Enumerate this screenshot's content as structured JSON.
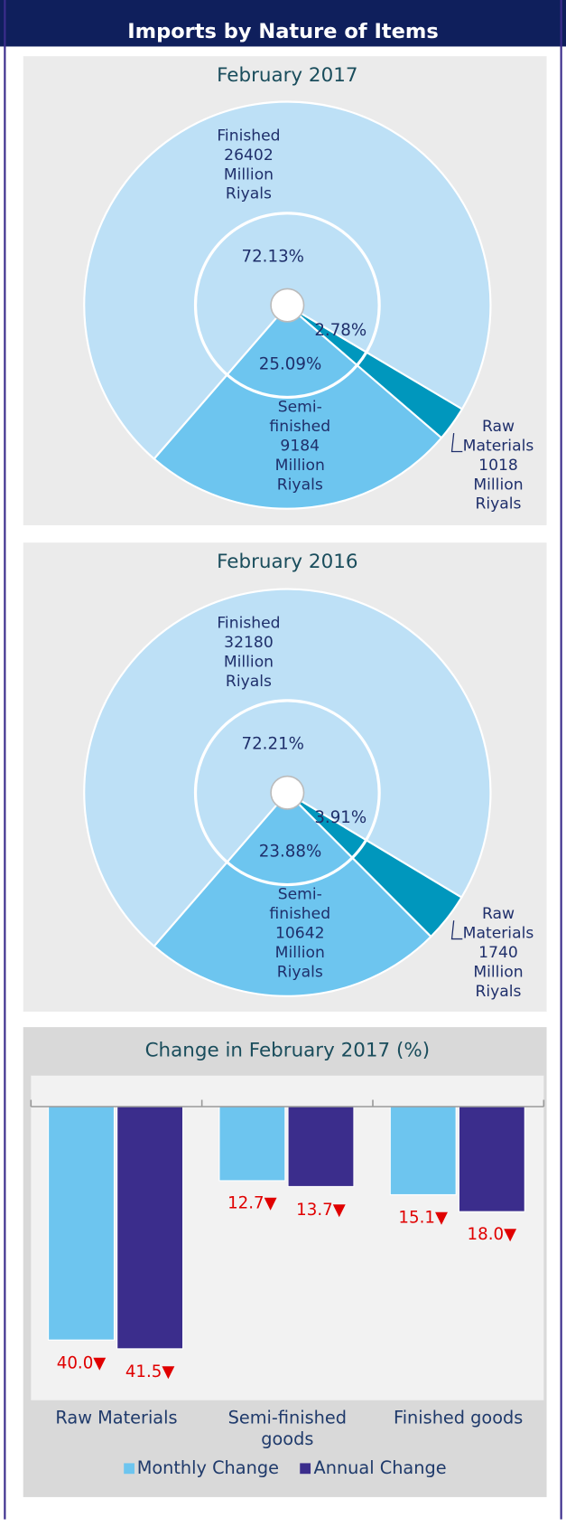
{
  "title": "Imports by Nature of Items",
  "chart_data": [
    {
      "type": "pie",
      "title": "February 2017",
      "categories": [
        "Finished",
        "Semi-finished",
        "Raw Materials"
      ],
      "values": [
        72.13,
        25.09,
        2.78
      ],
      "value_labels": [
        "72.13%",
        "25.09%",
        "2.78%"
      ],
      "amounts": [
        26402,
        9184,
        1018
      ],
      "unit": "Million Riyals",
      "colors": [
        "#bde0f6",
        "#6dc5ef",
        "#0097bd"
      ]
    },
    {
      "type": "pie",
      "title": "February 2016",
      "categories": [
        "Finished",
        "Semi-finished",
        "Raw Materials"
      ],
      "values": [
        72.21,
        23.88,
        3.91
      ],
      "value_labels": [
        "72.21%",
        "23.88%",
        "3.91%"
      ],
      "amounts": [
        32180,
        10642,
        1740
      ],
      "unit": "Million Riyals",
      "colors": [
        "#bde0f6",
        "#6dc5ef",
        "#0097bd"
      ]
    },
    {
      "type": "bar",
      "title": "Change in February 2017 (%)",
      "categories": [
        "Raw Materials",
        "Semi-finished goods",
        "Finished goods"
      ],
      "series": [
        {
          "name": "Monthly Change",
          "color": "#6dc5ef",
          "values": [
            -40.0,
            -12.7,
            -15.1
          ],
          "value_labels": [
            "40.0▼",
            "12.7▼",
            "15.1▼"
          ]
        },
        {
          "name": "Annual Change",
          "color": "#3b2d8c",
          "values": [
            -41.5,
            -13.7,
            -18.0
          ],
          "value_labels": [
            "41.5▼",
            "13.7▼",
            "18.0▼"
          ]
        }
      ],
      "ylim": [
        -45,
        0
      ],
      "legend": "bottom",
      "label_color": "#e00000"
    }
  ]
}
